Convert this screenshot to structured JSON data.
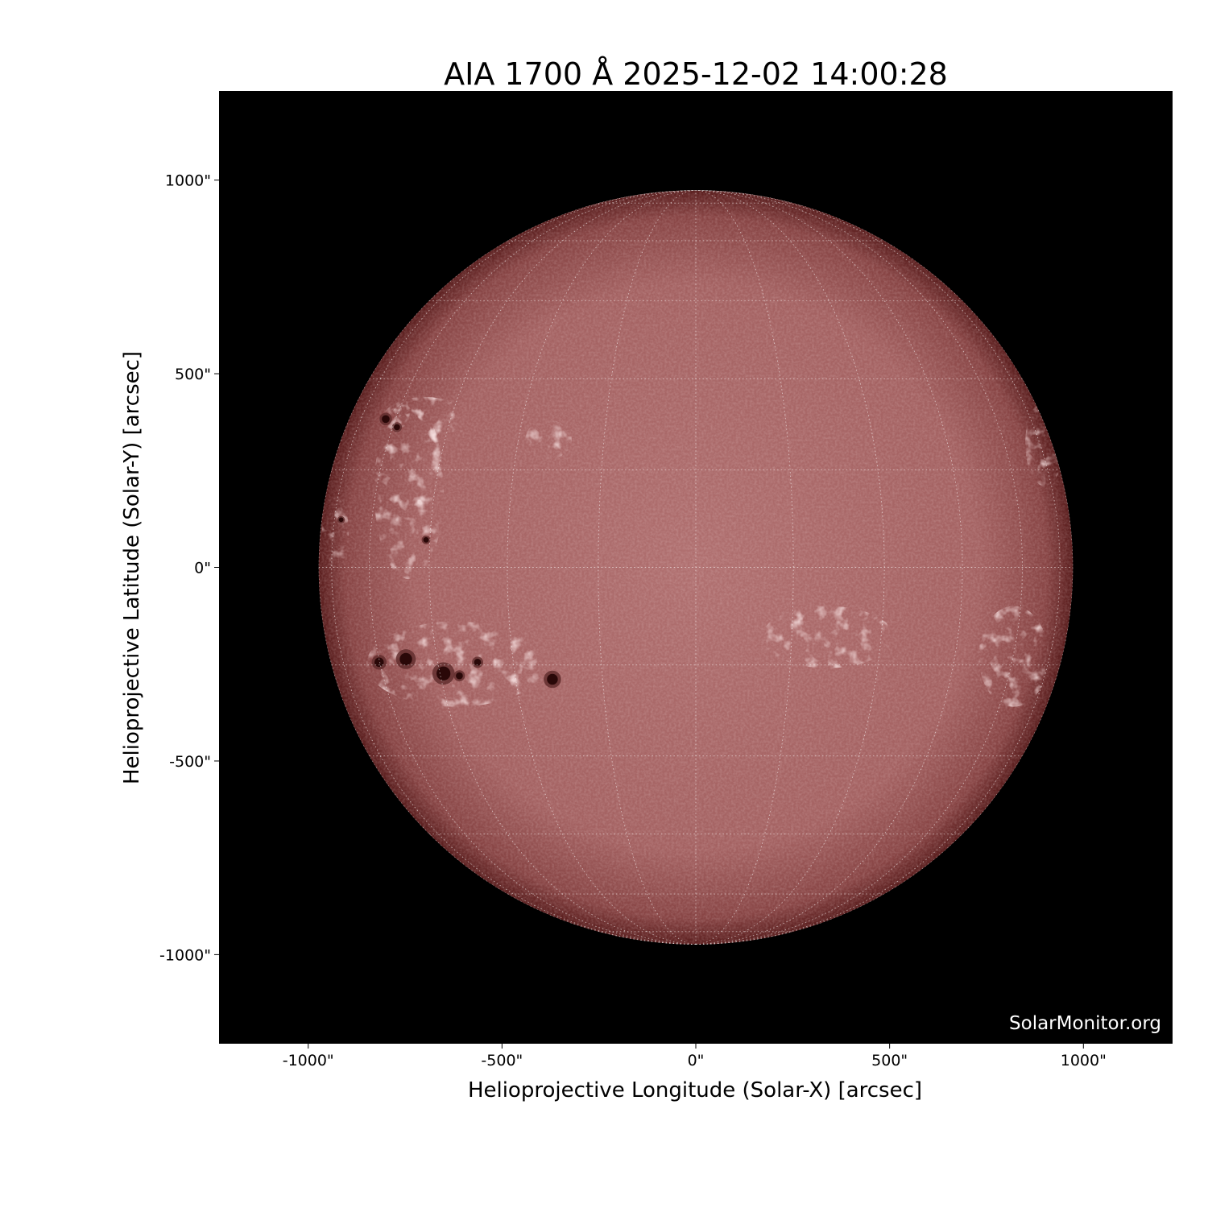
{
  "chart_data": {
    "type": "heatmap",
    "title": "AIA 1700 Å 2025-12-02 14:00:28",
    "xlabel": "Helioprojective Longitude (Solar-X) [arcsec]",
    "ylabel": "Helioprojective Latitude (Solar-Y) [arcsec]",
    "xlim": [
      -1230,
      1230
    ],
    "ylim": [
      -1230,
      1230
    ],
    "xticks": [
      -1000,
      -500,
      0,
      500,
      1000
    ],
    "yticks": [
      -1000,
      -500,
      0,
      500,
      1000
    ],
    "xtick_labels": [
      "-1000\"",
      "-500\"",
      "0\"",
      "500\"",
      "1000\""
    ],
    "ytick_labels": [
      "-1000\"",
      "-500\"",
      "0\"",
      "500\"",
      "1000\""
    ],
    "solar_radius_arcsec": 973,
    "grid": {
      "type": "heliographic",
      "spacing_deg": 15,
      "style": "dotted",
      "color": "#ffffff"
    },
    "colormap": {
      "background": "#000000",
      "limb": "#5a1e1e",
      "disk_center": "#b07070",
      "plage": "#f0c8c8",
      "sunspot": "#2a0808"
    },
    "sunspots": [
      {
        "x": -817,
        "y": -245,
        "r": 12
      },
      {
        "x": -748,
        "y": -237,
        "r": 16
      },
      {
        "x": -651,
        "y": -274,
        "r": 18
      },
      {
        "x": -610,
        "y": -280,
        "r": 9
      },
      {
        "x": -563,
        "y": -245,
        "r": 9
      },
      {
        "x": -370,
        "y": -289,
        "r": 14
      },
      {
        "x": -800,
        "y": 383,
        "r": 10
      },
      {
        "x": -771,
        "y": 362,
        "r": 8
      },
      {
        "x": -696,
        "y": 71,
        "r": 7
      },
      {
        "x": -915,
        "y": 123,
        "r": 6
      }
    ],
    "plage_regions": [
      {
        "x": -620,
        "y": -250,
        "rx": 230,
        "ry": 110
      },
      {
        "x": -740,
        "y": 200,
        "rx": 90,
        "ry": 230
      },
      {
        "x": -700,
        "y": 380,
        "rx": 110,
        "ry": 60
      },
      {
        "x": -380,
        "y": 330,
        "rx": 60,
        "ry": 50
      },
      {
        "x": 340,
        "y": -180,
        "rx": 170,
        "ry": 80
      },
      {
        "x": 820,
        "y": -230,
        "rx": 90,
        "ry": 130
      },
      {
        "x": 900,
        "y": 320,
        "rx": 50,
        "ry": 110
      },
      {
        "x": -930,
        "y": 90,
        "rx": 35,
        "ry": 90
      }
    ]
  },
  "watermark": "SolarMonitor.org"
}
